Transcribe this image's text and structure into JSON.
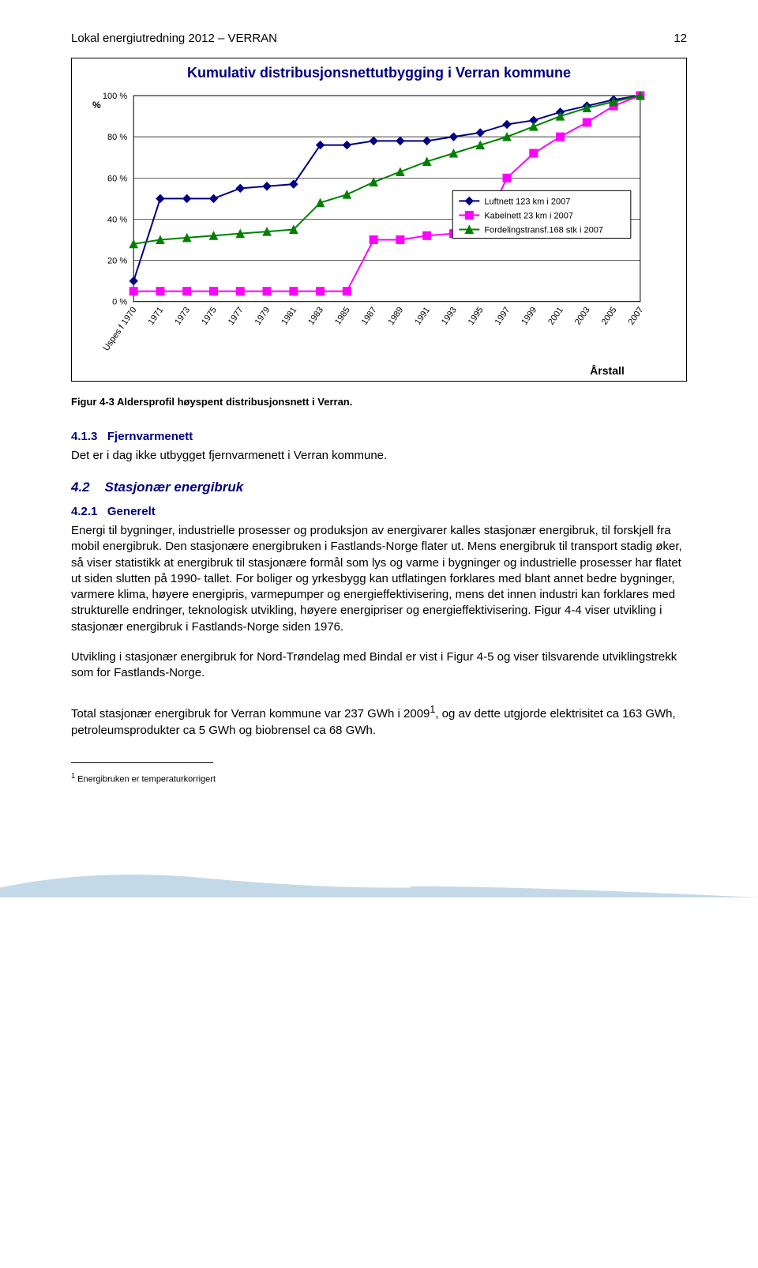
{
  "header": {
    "title": "Lokal energiutredning 2012 – VERRAN",
    "page_number": "12"
  },
  "chart": {
    "type": "line",
    "title": "Kumulativ distribusjonsnettutbygging i Verran kommune",
    "background_color": "#ffffff",
    "plot_bg": "#ffffff",
    "plot_border": "#000000",
    "grid_color": "#000000",
    "ylabel": "%",
    "ylabel_fontsize": 12,
    "xlabel": "Årstall",
    "xlabel_fontsize": 14,
    "xlabel_bold": true,
    "ylim": [
      0,
      100
    ],
    "yticks": [
      0,
      20,
      40,
      60,
      80,
      100
    ],
    "ytick_labels": [
      "0 %",
      "20 %",
      "40 %",
      "60 %",
      "80 %",
      "100 %"
    ],
    "xticks": [
      "Uspes f 1970",
      "1971",
      "1973",
      "1975",
      "1977",
      "1979",
      "1981",
      "1983",
      "1985",
      "1987",
      "1989",
      "1991",
      "1993",
      "1995",
      "1997",
      "1999",
      "2001",
      "2003",
      "2005",
      "2007"
    ],
    "tick_fontsize": 11,
    "line_width": 2,
    "marker_size": 5,
    "series": [
      {
        "name": "Luftnett 123 km i 2007",
        "color": "#000080",
        "marker": "diamond",
        "x_idx": [
          0,
          1,
          2,
          3,
          4,
          5,
          6,
          7,
          8,
          9,
          10,
          11,
          12,
          13,
          14,
          15,
          16,
          17,
          18,
          19
        ],
        "y": [
          10,
          50,
          50,
          50,
          55,
          56,
          57,
          76,
          76,
          78,
          78,
          78,
          80,
          82,
          86,
          88,
          92,
          95,
          98,
          100
        ]
      },
      {
        "name": "Kabelnett 23 km i 2007",
        "color": "#ff00ff",
        "marker": "square",
        "x_idx": [
          0,
          1,
          2,
          3,
          4,
          5,
          6,
          7,
          8,
          9,
          10,
          11,
          12,
          13,
          14,
          15,
          16,
          17,
          18,
          19
        ],
        "y": [
          5,
          5,
          5,
          5,
          5,
          5,
          5,
          5,
          5,
          30,
          30,
          32,
          33,
          33,
          60,
          72,
          80,
          87,
          95,
          100
        ]
      },
      {
        "name": "Fordelingstransf.168 stk i 2007",
        "color": "#008000",
        "marker": "triangle",
        "x_idx": [
          0,
          1,
          2,
          3,
          4,
          5,
          6,
          7,
          8,
          9,
          10,
          11,
          12,
          13,
          14,
          15,
          16,
          17,
          18,
          19
        ],
        "y": [
          28,
          30,
          31,
          32,
          33,
          34,
          35,
          48,
          52,
          58,
          63,
          68,
          72,
          76,
          80,
          85,
          90,
          94,
          97,
          100
        ]
      }
    ],
    "legend": {
      "border_color": "#000000",
      "bg": "#ffffff",
      "fontsize": 11
    }
  },
  "caption": "Figur 4-3 Aldersprofil høyspent distribusjonsnett i Verran.",
  "sec413": {
    "num": "4.1.3",
    "title": "Fjernvarmenett",
    "body": "Det er i dag ikke utbygget fjernvarmenett i Verran kommune."
  },
  "sec42": {
    "num": "4.2",
    "title": "Stasjonær energibruk"
  },
  "sec421": {
    "num": "4.2.1",
    "title": "Generelt",
    "para1": "Energi til bygninger, industrielle prosesser og produksjon av energivarer kalles stasjonær energibruk, til forskjell fra mobil energibruk. Den stasjonære energibruken i Fastlands-Norge flater ut. Mens energibruk til transport stadig øker, så viser statistikk at energibruk til stasjonære formål som lys og varme i bygninger og industrielle prosesser har flatet ut siden slutten på 1990- tallet. For boliger og yrkesbygg kan utflatingen forklares med blant annet bedre bygninger, varmere klima, høyere energipris, varmepumper og energieffektivisering, mens det innen industri kan forklares med strukturelle endringer, teknologisk utvikling, høyere energipriser og energieffektivisering. Figur 4-4 viser utvikling i stasjonær energibruk i Fastlands-Norge siden 1976.",
    "para2": "Utvikling i stasjonær energibruk for Nord-Trøndelag med Bindal er vist i Figur 4-5 og viser tilsvarende utviklingstrekk som for Fastlands-Norge.",
    "para3_a": "Total stasjonær energibruk for Verran kommune var 237 GWh i 2009",
    "para3_sup": "1",
    "para3_b": ", og av dette utgjorde elektrisitet ca 163 GWh, petroleumsprodukter ca 5 GWh og biobrensel ca 68 GWh."
  },
  "footnote": {
    "marker": "1",
    "text": "Energibruken er temperaturkorrigert"
  },
  "footer_curve": {
    "fill": "#c4d9e8",
    "highlight": "#ffffff"
  }
}
